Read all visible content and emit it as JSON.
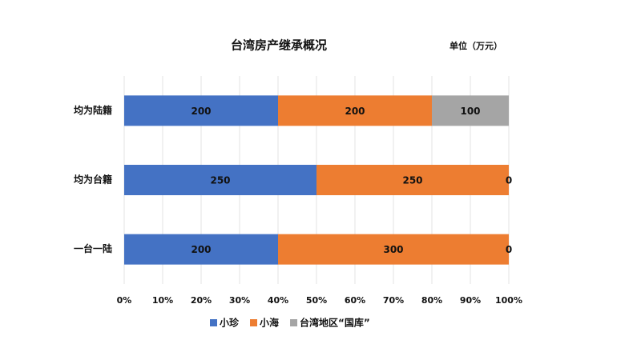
{
  "chart_data": {
    "type": "bar",
    "orientation": "horizontal",
    "stacked": "percent",
    "title": "台湾房产继承概况",
    "unit_note": "单位（万元）",
    "categories": [
      "均为陆籍",
      "均为台籍",
      "一台一陆"
    ],
    "series": [
      {
        "name": "小珍",
        "color": "#4472c4",
        "values": [
          200,
          250,
          200
        ]
      },
      {
        "name": "小海",
        "color": "#ed7d31",
        "values": [
          200,
          250,
          300
        ]
      },
      {
        "name": "台湾地区“国库”",
        "color": "#a5a5a5",
        "values": [
          100,
          0,
          0
        ]
      }
    ],
    "xlim": [
      0,
      100
    ],
    "xticks": [
      {
        "value": 0,
        "label": "0%"
      },
      {
        "value": 10,
        "label": "10%"
      },
      {
        "value": 20,
        "label": "20%"
      },
      {
        "value": 30,
        "label": "30%"
      },
      {
        "value": 40,
        "label": "40%"
      },
      {
        "value": 50,
        "label": "50%"
      },
      {
        "value": 60,
        "label": "60%"
      },
      {
        "value": 70,
        "label": "70%"
      },
      {
        "value": 80,
        "label": "80%"
      },
      {
        "value": 90,
        "label": "90%"
      },
      {
        "value": 100,
        "label": "100%"
      }
    ],
    "grid": true,
    "legend": "bottom"
  }
}
